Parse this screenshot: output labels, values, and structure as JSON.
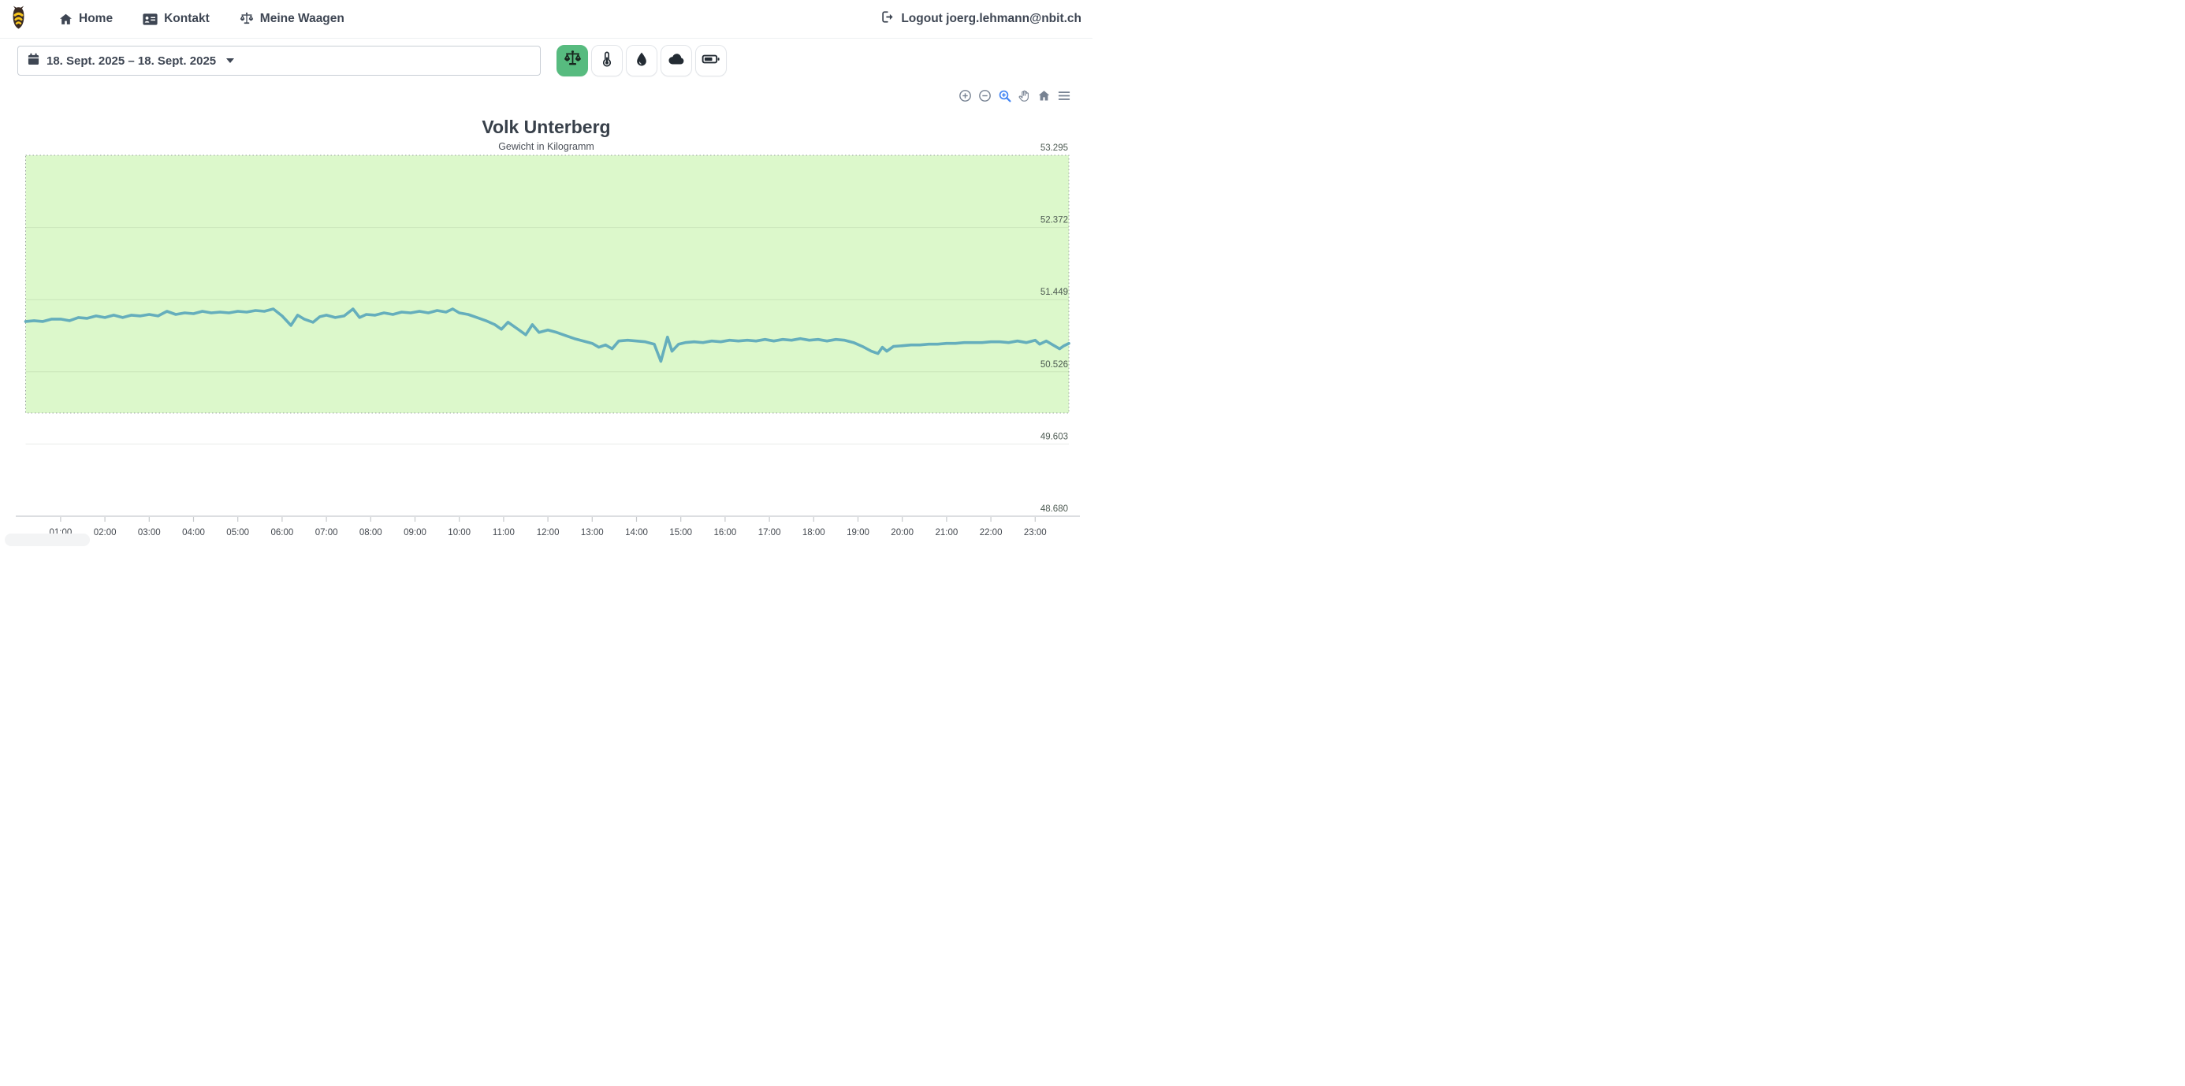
{
  "navbar": {
    "brand": "bee-logo",
    "items": [
      {
        "label": "Home",
        "icon": "home-icon"
      },
      {
        "label": "Kontakt",
        "icon": "address-card-icon"
      },
      {
        "label": "Meine Waagen",
        "icon": "scale-icon"
      }
    ],
    "logout_label": "Logout joerg.lehmann@nbit.ch"
  },
  "controls": {
    "date_range": "18. Sept. 2025 – 18. Sept. 2025",
    "filter_buttons": [
      {
        "name": "weight",
        "icon": "scale-icon",
        "active": true,
        "active_color": "#57bb7f"
      },
      {
        "name": "temperature",
        "icon": "thermometer-icon",
        "active": false
      },
      {
        "name": "humidity",
        "icon": "droplet-icon",
        "active": false
      },
      {
        "name": "weather",
        "icon": "cloud-icon",
        "active": false
      },
      {
        "name": "battery",
        "icon": "battery-icon",
        "active": false
      }
    ]
  },
  "chart_toolbar": {
    "buttons": [
      "zoom-in",
      "zoom-out",
      "box-zoom",
      "pan",
      "reset-home",
      "menu"
    ],
    "active_button": "box-zoom",
    "active_color": "#4285f4",
    "default_color": "#778292"
  },
  "chart_data": {
    "type": "line",
    "title": "Volk Unterberg",
    "subtitle": "Gewicht in Kilogramm",
    "ylim": [
      48.68,
      53.295
    ],
    "y_ticks": [
      53.295,
      52.372,
      51.449,
      50.526,
      49.603,
      48.68
    ],
    "xlim_hours": [
      0.21,
      23.76
    ],
    "x_tick_labels": [
      "01:00",
      "02:00",
      "03:00",
      "04:00",
      "05:00",
      "06:00",
      "07:00",
      "08:00",
      "09:00",
      "10:00",
      "11:00",
      "12:00",
      "13:00",
      "14:00",
      "15:00",
      "16:00",
      "17:00",
      "18:00",
      "19:00",
      "20:00",
      "21:00",
      "22:00",
      "23:00"
    ],
    "grid": true,
    "legend": "none",
    "line_color": "#65aebc",
    "band": {
      "from": 50.0,
      "to": 53.295,
      "color": "#dcf8cb",
      "border_style": "dotted",
      "border_color": "#9aa5a0"
    },
    "series": [
      {
        "name": "Gewicht",
        "points": [
          [
            0.21,
            51.17
          ],
          [
            0.4,
            51.18
          ],
          [
            0.6,
            51.17
          ],
          [
            0.8,
            51.2
          ],
          [
            1.0,
            51.2
          ],
          [
            1.2,
            51.18
          ],
          [
            1.4,
            51.22
          ],
          [
            1.6,
            51.21
          ],
          [
            1.8,
            51.24
          ],
          [
            2.0,
            51.22
          ],
          [
            2.2,
            51.25
          ],
          [
            2.4,
            51.22
          ],
          [
            2.6,
            51.25
          ],
          [
            2.8,
            51.24
          ],
          [
            3.0,
            51.26
          ],
          [
            3.2,
            51.24
          ],
          [
            3.4,
            51.3
          ],
          [
            3.6,
            51.26
          ],
          [
            3.8,
            51.28
          ],
          [
            4.0,
            51.27
          ],
          [
            4.2,
            51.3
          ],
          [
            4.4,
            51.28
          ],
          [
            4.6,
            51.29
          ],
          [
            4.8,
            51.28
          ],
          [
            5.0,
            51.3
          ],
          [
            5.2,
            51.29
          ],
          [
            5.4,
            51.31
          ],
          [
            5.6,
            51.3
          ],
          [
            5.8,
            51.33
          ],
          [
            6.0,
            51.24
          ],
          [
            6.2,
            51.12
          ],
          [
            6.35,
            51.25
          ],
          [
            6.5,
            51.2
          ],
          [
            6.7,
            51.16
          ],
          [
            6.85,
            51.23
          ],
          [
            7.0,
            51.25
          ],
          [
            7.2,
            51.22
          ],
          [
            7.4,
            51.24
          ],
          [
            7.6,
            51.33
          ],
          [
            7.75,
            51.22
          ],
          [
            7.9,
            51.26
          ],
          [
            8.1,
            51.25
          ],
          [
            8.3,
            51.28
          ],
          [
            8.5,
            51.26
          ],
          [
            8.7,
            51.29
          ],
          [
            8.9,
            51.28
          ],
          [
            9.1,
            51.3
          ],
          [
            9.3,
            51.28
          ],
          [
            9.5,
            51.31
          ],
          [
            9.7,
            51.29
          ],
          [
            9.85,
            51.33
          ],
          [
            10.0,
            51.28
          ],
          [
            10.2,
            51.26
          ],
          [
            10.4,
            51.22
          ],
          [
            10.6,
            51.18
          ],
          [
            10.8,
            51.13
          ],
          [
            10.95,
            51.07
          ],
          [
            11.1,
            51.16
          ],
          [
            11.3,
            51.08
          ],
          [
            11.5,
            51.0
          ],
          [
            11.65,
            51.13
          ],
          [
            11.8,
            51.03
          ],
          [
            12.0,
            51.06
          ],
          [
            12.2,
            51.03
          ],
          [
            12.4,
            50.99
          ],
          [
            12.6,
            50.95
          ],
          [
            12.8,
            50.92
          ],
          [
            13.0,
            50.89
          ],
          [
            13.15,
            50.84
          ],
          [
            13.3,
            50.87
          ],
          [
            13.45,
            50.82
          ],
          [
            13.6,
            50.92
          ],
          [
            13.8,
            50.93
          ],
          [
            14.0,
            50.92
          ],
          [
            14.2,
            50.91
          ],
          [
            14.4,
            50.88
          ],
          [
            14.55,
            50.66
          ],
          [
            14.7,
            50.97
          ],
          [
            14.8,
            50.79
          ],
          [
            14.95,
            50.88
          ],
          [
            15.1,
            50.9
          ],
          [
            15.3,
            50.91
          ],
          [
            15.5,
            50.9
          ],
          [
            15.7,
            50.92
          ],
          [
            15.9,
            50.91
          ],
          [
            16.1,
            50.93
          ],
          [
            16.3,
            50.92
          ],
          [
            16.5,
            50.93
          ],
          [
            16.7,
            50.92
          ],
          [
            16.9,
            50.94
          ],
          [
            17.1,
            50.92
          ],
          [
            17.3,
            50.94
          ],
          [
            17.5,
            50.93
          ],
          [
            17.7,
            50.95
          ],
          [
            17.9,
            50.93
          ],
          [
            18.1,
            50.94
          ],
          [
            18.3,
            50.92
          ],
          [
            18.5,
            50.94
          ],
          [
            18.7,
            50.93
          ],
          [
            18.9,
            50.9
          ],
          [
            19.1,
            50.85
          ],
          [
            19.3,
            50.79
          ],
          [
            19.45,
            50.76
          ],
          [
            19.55,
            50.84
          ],
          [
            19.65,
            50.79
          ],
          [
            19.8,
            50.85
          ],
          [
            20.0,
            50.86
          ],
          [
            20.2,
            50.87
          ],
          [
            20.4,
            50.87
          ],
          [
            20.6,
            50.88
          ],
          [
            20.8,
            50.88
          ],
          [
            21.0,
            50.89
          ],
          [
            21.2,
            50.89
          ],
          [
            21.4,
            50.9
          ],
          [
            21.6,
            50.9
          ],
          [
            21.8,
            50.9
          ],
          [
            22.0,
            50.91
          ],
          [
            22.2,
            50.91
          ],
          [
            22.4,
            50.9
          ],
          [
            22.6,
            50.92
          ],
          [
            22.8,
            50.9
          ],
          [
            23.0,
            50.93
          ],
          [
            23.1,
            50.88
          ],
          [
            23.25,
            50.92
          ],
          [
            23.4,
            50.87
          ],
          [
            23.55,
            50.82
          ],
          [
            23.65,
            50.86
          ],
          [
            23.76,
            50.89
          ]
        ]
      }
    ]
  }
}
